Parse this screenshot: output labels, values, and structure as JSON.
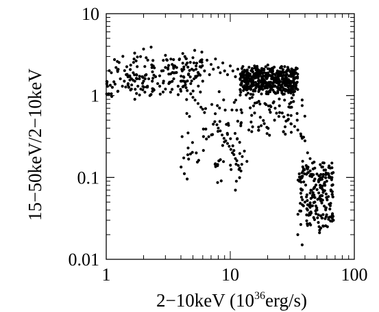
{
  "chart_data": {
    "type": "scatter",
    "title": "",
    "xlabel_main": "2−10keV (10",
    "xlabel_sup": "36",
    "xlabel_tail": "erg/s)",
    "ylabel": "15−50keV/2−10keV",
    "x_scale": "log",
    "y_scale": "log",
    "xlim": [
      1,
      100
    ],
    "ylim": [
      0.01,
      10
    ],
    "x_ticks": [
      {
        "value": 1,
        "label": "1"
      },
      {
        "value": 10,
        "label": "10"
      },
      {
        "value": 100,
        "label": "100"
      }
    ],
    "y_ticks": [
      {
        "value": 0.01,
        "label": "0.01"
      },
      {
        "value": 0.1,
        "label": "0.1"
      },
      {
        "value": 1,
        "label": "1"
      },
      {
        "value": 10,
        "label": "10"
      }
    ],
    "grid": false,
    "marker_color": "#000000",
    "groups": [
      {
        "x_range": [
          1.0,
          6.0
        ],
        "y_range": [
          0.9,
          3.8
        ],
        "count": 150
      },
      {
        "x_range": [
          12.0,
          35.0
        ],
        "y_range": [
          1.0,
          2.4
        ],
        "count": 450
      },
      {
        "x_range": [
          4.0,
          14.0
        ],
        "y_range": [
          0.07,
          1.4
        ],
        "count": 80
      },
      {
        "x_range": [
          14.0,
          40.0
        ],
        "y_range": [
          0.3,
          1.0
        ],
        "count": 60
      },
      {
        "x_range": [
          35.0,
          68.0
        ],
        "y_range": [
          0.02,
          0.17
        ],
        "count": 200
      }
    ],
    "points": [
      [
        1.05,
        1.05
      ],
      [
        1.1,
        1.05
      ],
      [
        1.1,
        1.9
      ],
      [
        1.2,
        2.2
      ],
      [
        1.3,
        1.6
      ],
      [
        1.35,
        1.3
      ],
      [
        1.4,
        1.5
      ],
      [
        1.45,
        1.8
      ],
      [
        1.5,
        1.4
      ],
      [
        1.55,
        1.7
      ],
      [
        1.6,
        1.6
      ],
      [
        1.65,
        1.9
      ],
      [
        1.7,
        0.9
      ],
      [
        1.7,
        1.5
      ],
      [
        1.75,
        1.8
      ],
      [
        1.8,
        1.3
      ],
      [
        1.85,
        1.6
      ],
      [
        1.9,
        1.2
      ],
      [
        1.95,
        1.7
      ],
      [
        2.0,
        1.5
      ],
      [
        2.0,
        3.7
      ],
      [
        2.05,
        1.1
      ],
      [
        2.1,
        1.8
      ],
      [
        2.15,
        1.3
      ],
      [
        2.2,
        1.6
      ],
      [
        2.25,
        1.0
      ],
      [
        2.3,
        3.9
      ],
      [
        2.35,
        1.5
      ],
      [
        2.4,
        1.2
      ],
      [
        2.5,
        1.7
      ],
      [
        2.6,
        1.4
      ],
      [
        2.7,
        1.3
      ],
      [
        2.8,
        2.0
      ],
      [
        2.9,
        1.5
      ],
      [
        3.0,
        3.1
      ],
      [
        3.0,
        1.2
      ],
      [
        3.1,
        2.7
      ],
      [
        3.2,
        1.4
      ],
      [
        3.3,
        1.1
      ],
      [
        3.4,
        2.4
      ],
      [
        3.5,
        1.6
      ],
      [
        3.6,
        1.9
      ],
      [
        3.7,
        2.2
      ],
      [
        3.8,
        1.3
      ],
      [
        3.9,
        2.8
      ],
      [
        4.0,
        1.5
      ],
      [
        4.1,
        2.0
      ],
      [
        4.2,
        1.7
      ],
      [
        4.3,
        3.0
      ],
      [
        4.4,
        1.25
      ],
      [
        4.5,
        2.5
      ],
      [
        4.6,
        1.8
      ],
      [
        4.8,
        1.4
      ],
      [
        4.9,
        2.1
      ],
      [
        5.0,
        2.9
      ],
      [
        5.1,
        1.6
      ],
      [
        5.3,
        2.3
      ],
      [
        5.5,
        1.9
      ],
      [
        5.7,
        2.6
      ],
      [
        5.9,
        3.4
      ],
      [
        6.0,
        1.5
      ],
      [
        6.2,
        2.0
      ],
      [
        6.5,
        2.7
      ],
      [
        6.8,
        1.8
      ],
      [
        7.0,
        2.4
      ],
      [
        7.3,
        2.1
      ],
      [
        7.6,
        2.8
      ],
      [
        8.0,
        2.2
      ],
      [
        8.3,
        1.9
      ],
      [
        8.7,
        2.5
      ],
      [
        9.0,
        2.0
      ],
      [
        9.5,
        1.8
      ],
      [
        10.0,
        2.3
      ],
      [
        10.5,
        2.0
      ],
      [
        11.0,
        1.7
      ],
      [
        11.5,
        2.1
      ],
      [
        12.0,
        1.6
      ],
      [
        12.5,
        1.9
      ],
      [
        13.0,
        1.5
      ],
      [
        13.5,
        1.8
      ],
      [
        14.0,
        1.4
      ],
      [
        14.5,
        1.6
      ],
      [
        15.0,
        1.3
      ],
      [
        15.5,
        1.7
      ],
      [
        16.0,
        1.45
      ],
      [
        16.5,
        1.35
      ],
      [
        17.0,
        1.55
      ],
      [
        17.5,
        1.25
      ],
      [
        18.0,
        1.6
      ],
      [
        18.5,
        1.4
      ],
      [
        19.0,
        1.5
      ],
      [
        19.5,
        1.3
      ],
      [
        20.0,
        1.7
      ],
      [
        20.5,
        1.45
      ],
      [
        21.0,
        1.35
      ],
      [
        21.5,
        1.6
      ],
      [
        22.0,
        1.4
      ],
      [
        22.5,
        1.55
      ],
      [
        23.0,
        1.3
      ],
      [
        23.5,
        1.65
      ],
      [
        24.0,
        1.45
      ],
      [
        25.0,
        1.5
      ],
      [
        26.0,
        1.35
      ],
      [
        27.0,
        1.6
      ],
      [
        28.0,
        1.4
      ],
      [
        29.0,
        1.55
      ],
      [
        30.0,
        1.45
      ],
      [
        31.0,
        1.3
      ],
      [
        32.0,
        1.5
      ],
      [
        34.0,
        1.4
      ],
      [
        4.2,
        1.3
      ],
      [
        4.5,
        1.15
      ],
      [
        4.8,
        1.05
      ],
      [
        5.0,
        0.95
      ],
      [
        5.2,
        0.88
      ],
      [
        5.5,
        0.8
      ],
      [
        5.8,
        0.72
      ],
      [
        6.0,
        0.68
      ],
      [
        6.2,
        0.62
      ],
      [
        7.5,
        0.48
      ],
      [
        7.8,
        0.44
      ],
      [
        8.0,
        0.4
      ],
      [
        8.3,
        0.37
      ],
      [
        8.6,
        0.33
      ],
      [
        8.9,
        0.3
      ],
      [
        9.2,
        0.28
      ],
      [
        9.5,
        0.26
      ],
      [
        9.8,
        0.24
      ],
      [
        10.1,
        0.22
      ],
      [
        10.4,
        0.2
      ],
      [
        10.7,
        0.19
      ],
      [
        11.0,
        0.17
      ],
      [
        11.3,
        0.16
      ],
      [
        11.6,
        0.14
      ],
      [
        11.9,
        0.13
      ],
      [
        12.2,
        0.12
      ],
      [
        11.2,
        0.09
      ],
      [
        11.0,
        0.07
      ],
      [
        12.5,
        0.18
      ],
      [
        13.0,
        0.21
      ],
      [
        15.0,
        0.95
      ],
      [
        17.0,
        0.85
      ],
      [
        19.0,
        0.8
      ],
      [
        21.0,
        0.75
      ],
      [
        23.0,
        0.7
      ],
      [
        25.0,
        0.62
      ],
      [
        27.0,
        0.55
      ],
      [
        29.0,
        0.5
      ],
      [
        31.0,
        0.45
      ],
      [
        33.0,
        0.42
      ],
      [
        35.0,
        0.38
      ],
      [
        37.0,
        0.34
      ],
      [
        39.0,
        0.31
      ],
      [
        38.0,
        0.3
      ],
      [
        40.0,
        0.28
      ],
      [
        42.0,
        0.2
      ],
      [
        44.0,
        0.17
      ],
      [
        46.0,
        0.15
      ],
      [
        48.0,
        0.13
      ],
      [
        50.0,
        0.11
      ],
      [
        36.0,
        0.09
      ],
      [
        38.0,
        0.07
      ],
      [
        40.0,
        0.05
      ],
      [
        42.0,
        0.04
      ],
      [
        44.0,
        0.035
      ],
      [
        46.0,
        0.045
      ],
      [
        48.0,
        0.05
      ],
      [
        50.0,
        0.04
      ],
      [
        52.0,
        0.055
      ],
      [
        54.0,
        0.06
      ],
      [
        56.0,
        0.07
      ],
      [
        58.0,
        0.08
      ],
      [
        60.0,
        0.09
      ],
      [
        62.0,
        0.11
      ],
      [
        64.0,
        0.13
      ],
      [
        66.0,
        0.15
      ],
      [
        35.0,
        0.02
      ],
      [
        38.0,
        0.015
      ],
      [
        52.0,
        0.025
      ],
      [
        55.0,
        0.032
      ]
    ]
  }
}
